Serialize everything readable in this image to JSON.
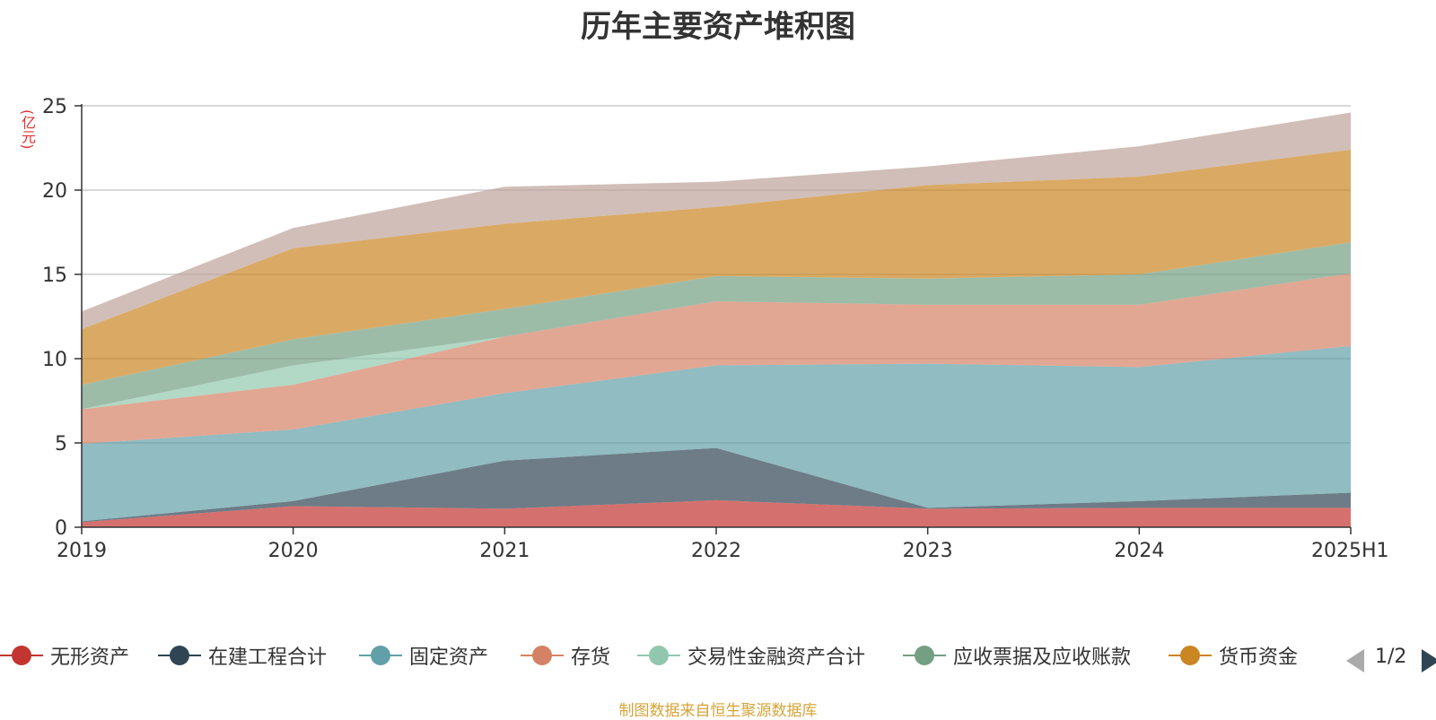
{
  "chart_data": {
    "type": "area",
    "stacked": true,
    "title": "历年主要资产堆积图",
    "unit_label": "(亿元)",
    "x": [
      "2019",
      "2020",
      "2021",
      "2022",
      "2023",
      "2024",
      "2025H1"
    ],
    "ylim": [
      0,
      25
    ],
    "y_ticks": [
      "0",
      "5",
      "10",
      "15",
      "20",
      "25"
    ],
    "grid": true,
    "legend_position": "bottom",
    "series": [
      {
        "name": "无形资产",
        "values": [
          0.3,
          1.25,
          1.1,
          1.6,
          1.1,
          1.15,
          1.15
        ],
        "color": "#c23531"
      },
      {
        "name": "在建工程合计",
        "values": [
          0.05,
          0.3,
          2.85,
          3.1,
          0.05,
          0.4,
          0.9
        ],
        "color": "#2f4554"
      },
      {
        "name": "固定资产",
        "values": [
          4.6,
          4.25,
          4.0,
          4.9,
          8.55,
          7.95,
          8.7
        ],
        "color": "#61a0a8"
      },
      {
        "name": "存货",
        "values": [
          2.05,
          2.65,
          3.35,
          3.8,
          3.5,
          3.7,
          4.3
        ],
        "color": "#d48265"
      },
      {
        "name": "交易性金融资产合计",
        "values": [
          0,
          1.15,
          0,
          0,
          0,
          0,
          0
        ],
        "color": "#91c7ae"
      },
      {
        "name": "应收票据及应收账款",
        "values": [
          1.45,
          1.55,
          1.65,
          1.5,
          1.55,
          1.8,
          1.85
        ],
        "color": "#749f83"
      },
      {
        "name": "货币资金",
        "values": [
          3.3,
          5.4,
          5.05,
          4.1,
          5.55,
          5.8,
          5.5
        ],
        "color": "#ca8622"
      },
      {
        "name": "",
        "values": [
          1.05,
          1.2,
          2.2,
          1.5,
          1.1,
          1.8,
          2.2
        ],
        "color": "#bda29a"
      }
    ]
  },
  "legend": {
    "items": [
      {
        "label": "无形资产",
        "color": "#c23531"
      },
      {
        "label": "在建工程合计",
        "color": "#2f4554"
      },
      {
        "label": "固定资产",
        "color": "#61a0a8"
      },
      {
        "label": "存货",
        "color": "#d48265"
      },
      {
        "label": "交易性金融资产合计",
        "color": "#91c7ae"
      },
      {
        "label": "应收票据及应收账款",
        "color": "#749f83"
      },
      {
        "label": "货币资金",
        "color": "#ca8622"
      }
    ],
    "page_indicator": "1/2"
  },
  "footer": "制图数据来自恒生聚源数据库"
}
